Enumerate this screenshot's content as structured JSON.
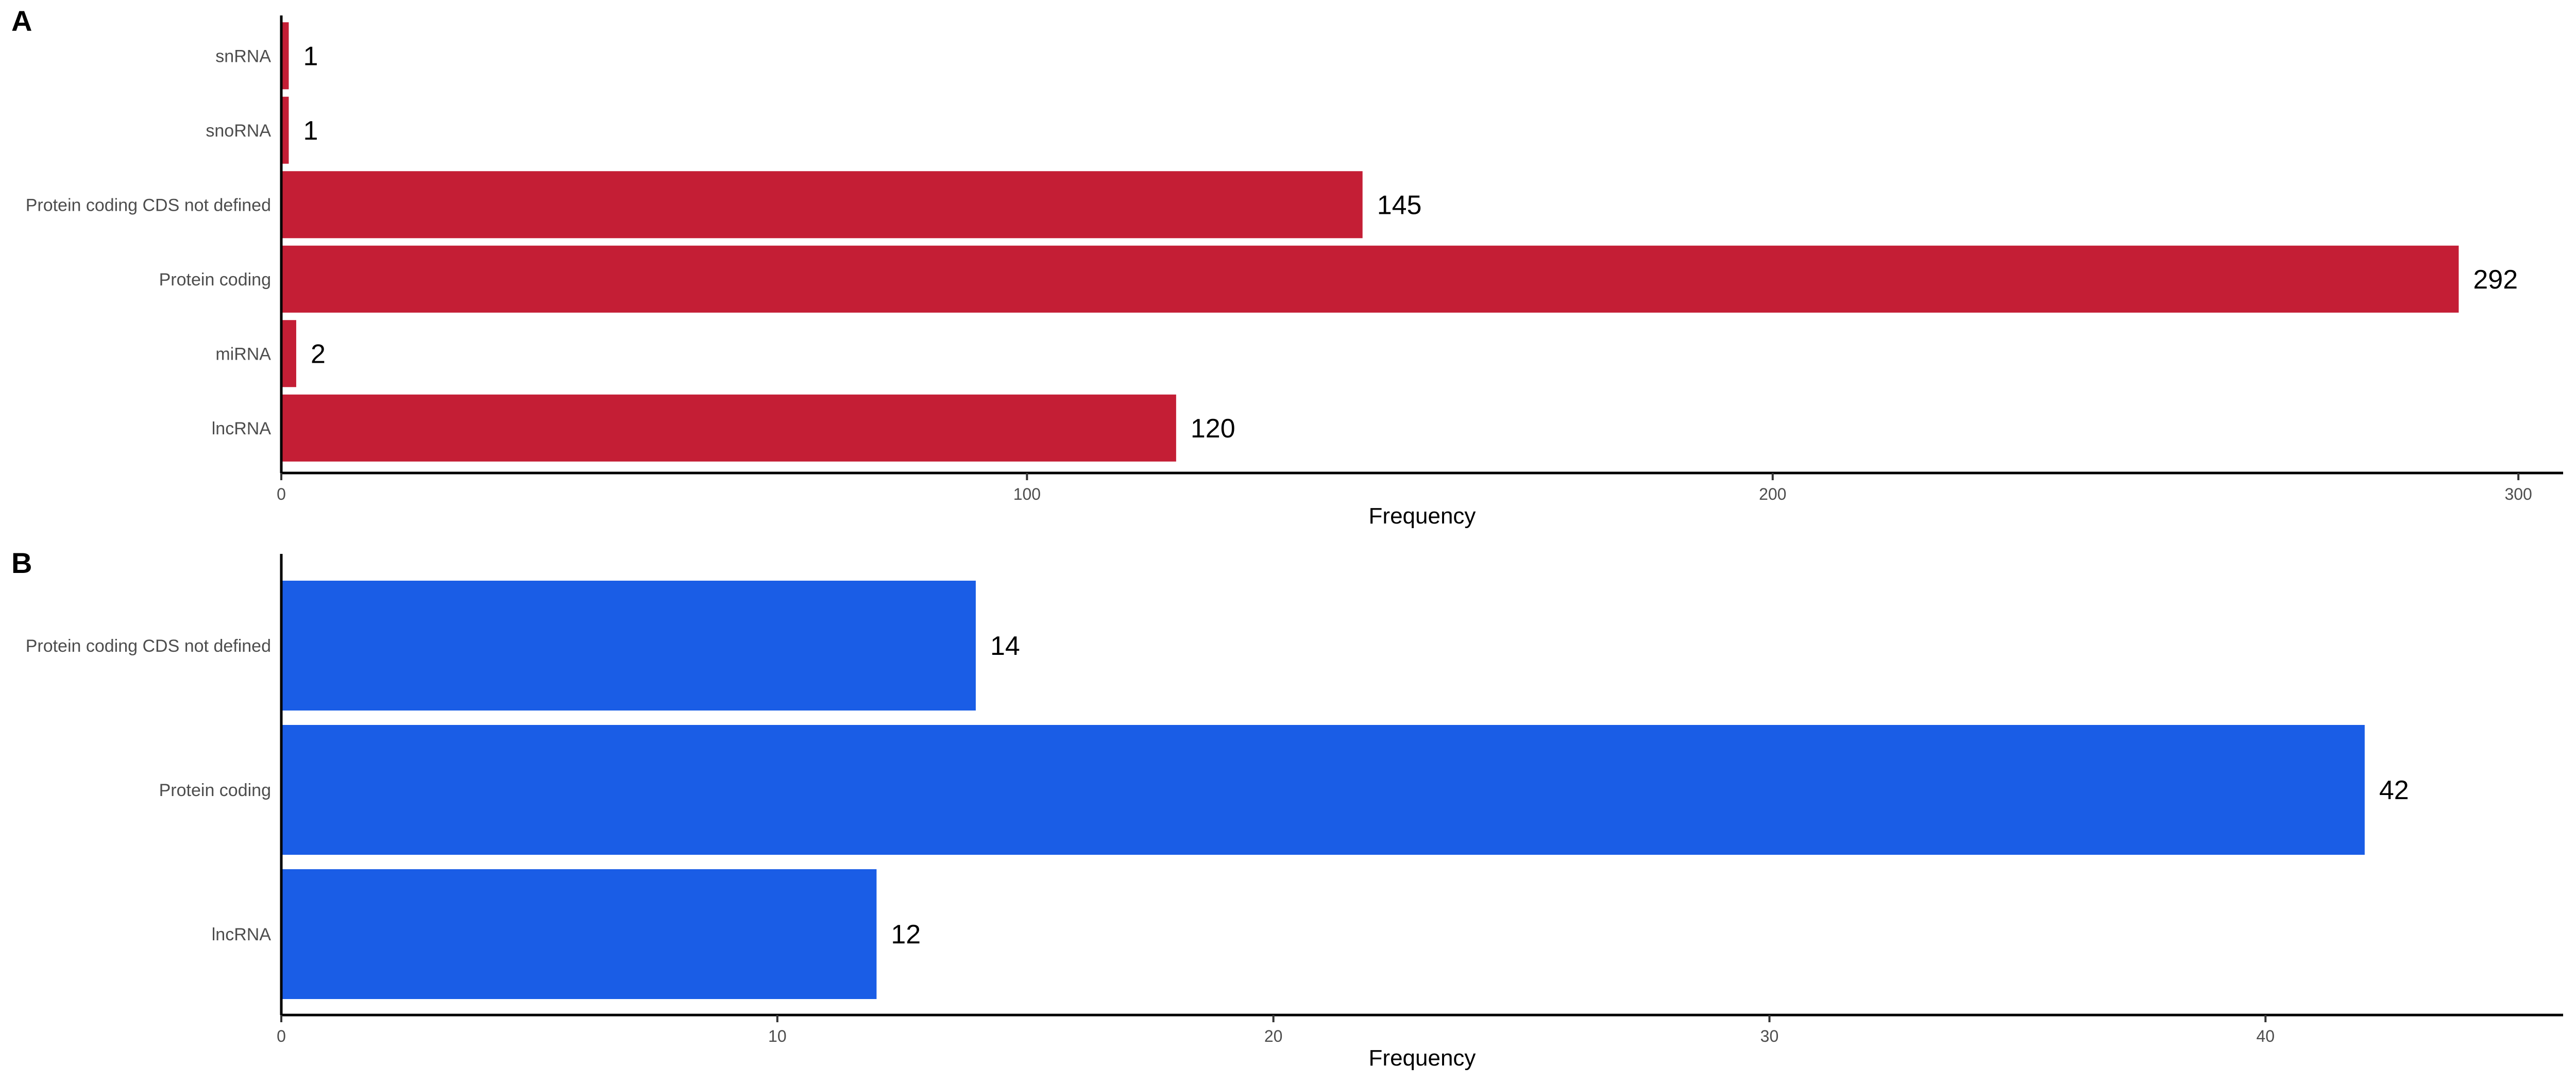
{
  "chart_data": [
    {
      "type": "bar",
      "orientation": "horizontal",
      "panel_label": "A",
      "categories": [
        "snRNA",
        "snoRNA",
        "Protein coding CDS not defined",
        "Protein coding",
        "miRNA",
        "lncRNA"
      ],
      "values": [
        1,
        1,
        145,
        292,
        2,
        120
      ],
      "data_labels": [
        "1",
        "1",
        "145",
        "292",
        "2",
        "120"
      ],
      "xlabel": "Frequency",
      "xticks": [
        0,
        100,
        200,
        300
      ],
      "xlim": [
        0,
        306
      ],
      "color": "#c41e35",
      "grid": false
    },
    {
      "type": "bar",
      "orientation": "horizontal",
      "panel_label": "B",
      "categories": [
        "Protein coding CDS not defined",
        "Protein coding",
        "lncRNA"
      ],
      "values": [
        14,
        42,
        12
      ],
      "data_labels": [
        "14",
        "42",
        "12"
      ],
      "xlabel": "Frequency",
      "xticks": [
        0,
        10,
        20,
        30,
        40
      ],
      "xlim": [
        0,
        46
      ],
      "color": "#1a5de6",
      "grid": false
    }
  ]
}
